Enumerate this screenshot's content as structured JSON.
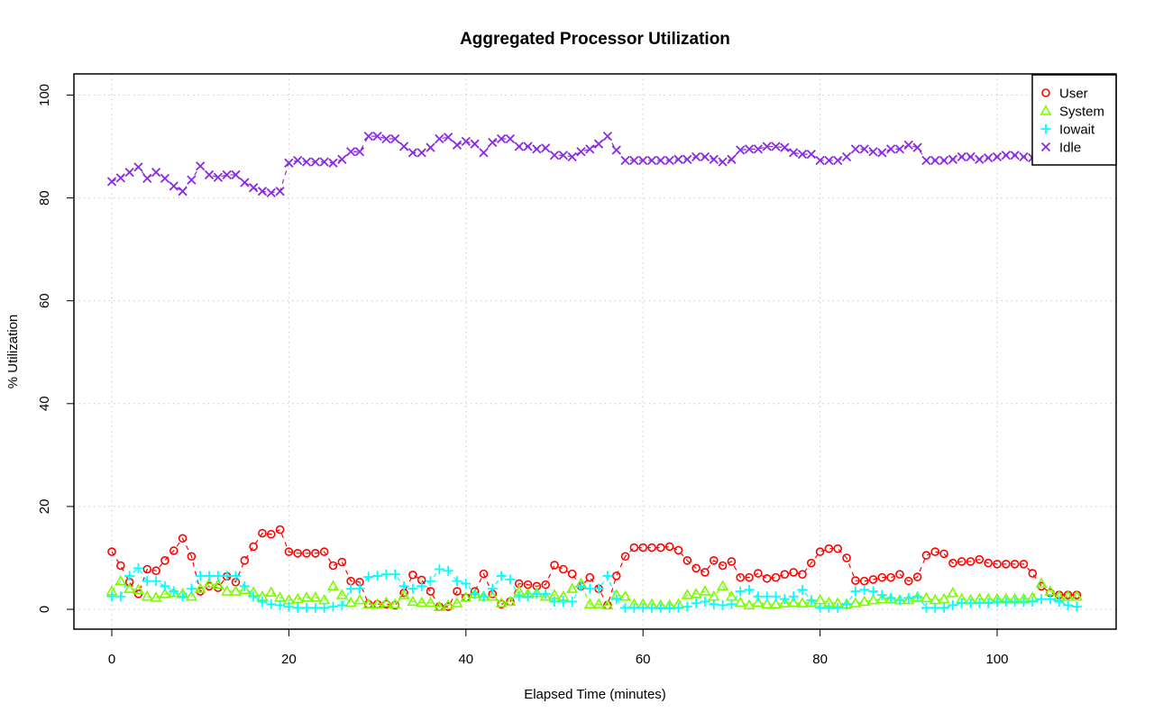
{
  "chart_data": {
    "type": "line",
    "title": "Aggregated Processor Utilization",
    "xlabel": "Elapsed Time (minutes)",
    "ylabel": "% Utilization",
    "xlim": [
      0,
      109
    ],
    "ylim": [
      0,
      100
    ],
    "xticks": [
      0,
      20,
      40,
      60,
      80,
      100
    ],
    "yticks": [
      0,
      20,
      40,
      60,
      80,
      100
    ],
    "grid": true,
    "legend_position": "top-right",
    "x": [
      0,
      1,
      2,
      3,
      4,
      5,
      6,
      7,
      8,
      9,
      10,
      11,
      12,
      13,
      14,
      15,
      16,
      17,
      18,
      19,
      20,
      21,
      22,
      23,
      24,
      25,
      26,
      27,
      28,
      29,
      30,
      31,
      32,
      33,
      34,
      35,
      36,
      37,
      38,
      39,
      40,
      41,
      42,
      43,
      44,
      45,
      46,
      47,
      48,
      49,
      50,
      51,
      52,
      53,
      54,
      55,
      56,
      57,
      58,
      59,
      60,
      61,
      62,
      63,
      64,
      65,
      66,
      67,
      68,
      69,
      70,
      71,
      72,
      73,
      74,
      75,
      76,
      77,
      78,
      79,
      80,
      81,
      82,
      83,
      84,
      85,
      86,
      87,
      88,
      89,
      90,
      91,
      92,
      93,
      94,
      95,
      96,
      97,
      98,
      99,
      100,
      101,
      102,
      103,
      104,
      105,
      106,
      107,
      108,
      109
    ],
    "series": [
      {
        "name": "User",
        "color": "#ff0000",
        "marker": "circle",
        "values": [
          11.2,
          8.5,
          5.3,
          3,
          7.8,
          7.5,
          9.5,
          11.4,
          13.8,
          10.3,
          3.5,
          4.5,
          4.2,
          6.4,
          5.3,
          9.5,
          12.2,
          14.8,
          14.6,
          15.5,
          11.2,
          10.9,
          10.9,
          10.9,
          11.2,
          8.5,
          9.2,
          5.5,
          5.3,
          1,
          1,
          1,
          0.8,
          3.2,
          6.7,
          5.7,
          3.5,
          0.5,
          0.5,
          3.5,
          2.3,
          3.5,
          6.9,
          3,
          1,
          1.5,
          5,
          4.8,
          4.5,
          4.8,
          8.6,
          7.8,
          6.9,
          4.5,
          6.2,
          4,
          0.8,
          6.5,
          10.3,
          12,
          12,
          12,
          12,
          12.2,
          11.5,
          9.5,
          8,
          7.2,
          9.5,
          8.5,
          9.3,
          6.2,
          6.2,
          7,
          6,
          6.2,
          6.8,
          7.2,
          6.8,
          9,
          11.2,
          11.8,
          11.8,
          10,
          5.6,
          5.5,
          5.8,
          6.2,
          6.2,
          6.8,
          5.5,
          6.3,
          10.5,
          11.2,
          10.8,
          9,
          9.3,
          9.3,
          9.7,
          9,
          8.8,
          8.8,
          8.8,
          8.8,
          7,
          4.5,
          3.2,
          2.8,
          2.8,
          2.8
        ]
      },
      {
        "name": "System",
        "color": "#7cfc00",
        "marker": "triangle",
        "values": [
          3.5,
          5.5,
          4,
          3.8,
          2.5,
          2.3,
          3,
          3.2,
          3,
          2.5,
          4,
          5,
          4.8,
          3.5,
          3.5,
          3.8,
          3.3,
          2.5,
          3.3,
          2.3,
          1.8,
          2,
          2.3,
          2.3,
          1.8,
          4.5,
          2.8,
          1.3,
          1.8,
          1,
          1,
          1.3,
          1,
          2.8,
          1.5,
          1.3,
          1.3,
          0.5,
          0.8,
          1.2,
          2.3,
          3,
          2.5,
          2.5,
          1.2,
          1.5,
          3.5,
          3,
          3.2,
          2.5,
          2.8,
          2.5,
          4,
          5,
          1,
          1,
          0.8,
          2.8,
          2.5,
          1,
          1,
          1,
          0.8,
          0.8,
          1,
          2.8,
          3,
          3.5,
          2.5,
          4.5,
          2.5,
          1.3,
          0.8,
          1.3,
          1,
          1,
          1.2,
          1.3,
          1.2,
          1.3,
          1.8,
          1.3,
          1.2,
          1,
          1.2,
          1.5,
          1.8,
          2,
          2,
          1.8,
          1.8,
          2.3,
          2.2,
          1.8,
          2,
          3.2,
          2,
          1.8,
          2,
          2,
          2,
          2,
          2,
          2,
          2.3,
          5,
          3.5,
          2.5,
          2.5,
          2.5
        ]
      },
      {
        "name": "Iowait",
        "color": "#00ffff",
        "marker": "plus",
        "values": [
          2.5,
          2.5,
          6.5,
          8,
          5.5,
          5.5,
          4.5,
          3.5,
          2.5,
          4,
          6.5,
          6.5,
          6.5,
          6.5,
          6.5,
          4.5,
          2.5,
          1.5,
          1,
          0.8,
          0.5,
          0.3,
          0.3,
          0.3,
          0.3,
          0.5,
          0.8,
          4,
          4,
          6.3,
          6.5,
          6.8,
          6.8,
          4.5,
          4,
          4.5,
          5.5,
          7.8,
          7.5,
          5.5,
          5,
          3,
          2.5,
          4,
          6.5,
          5.8,
          2.5,
          2.5,
          3,
          3,
          1.5,
          1.5,
          1.5,
          4.5,
          4,
          4,
          6.5,
          2,
          0.3,
          0.3,
          0.3,
          0.3,
          0.3,
          0.3,
          0.3,
          0.5,
          1.2,
          1.5,
          1,
          0.8,
          1,
          3.5,
          3.8,
          2.5,
          2.5,
          2.5,
          2,
          2.5,
          3.8,
          1.8,
          0.3,
          0.3,
          0.3,
          1,
          3.5,
          3.8,
          3.5,
          2.8,
          2.2,
          1.8,
          2.2,
          2.5,
          0.3,
          0.3,
          0.3,
          0.8,
          1.2,
          1.2,
          1.2,
          1.2,
          1.5,
          1.5,
          1.5,
          1.5,
          1.5,
          2,
          2,
          1.5,
          0.8,
          0.5
        ]
      },
      {
        "name": "Idle",
        "color": "#8a2be2",
        "marker": "x",
        "values": [
          83.2,
          83.9,
          85,
          86,
          83.8,
          85,
          83.8,
          82.3,
          81.3,
          83.5,
          86.2,
          84.5,
          84,
          84.5,
          84.5,
          83,
          82,
          81.3,
          81,
          81.3,
          86.8,
          87.3,
          87,
          87,
          87,
          86.8,
          87.5,
          89,
          89,
          92,
          92,
          91.5,
          91.5,
          90,
          88.8,
          88.8,
          89.8,
          91.5,
          91.8,
          90.3,
          91,
          90.5,
          88.8,
          90.8,
          91.5,
          91.5,
          90,
          90,
          89.5,
          89.7,
          88.3,
          88.3,
          88,
          89,
          89.5,
          90.5,
          92,
          89.3,
          87.3,
          87.3,
          87.3,
          87.3,
          87.3,
          87.3,
          87.5,
          87.5,
          88,
          88,
          87.5,
          87,
          87.5,
          89.3,
          89.5,
          89.5,
          90,
          90,
          89.8,
          88.8,
          88.5,
          88.5,
          87.3,
          87.3,
          87.3,
          88,
          89.5,
          89.5,
          89,
          88.8,
          89.5,
          89.5,
          90.3,
          89.8,
          87.3,
          87.3,
          87.3,
          87.5,
          88,
          88,
          87.5,
          87.8,
          88,
          88.3,
          88.3,
          88,
          87.8,
          88.8,
          92,
          94.5,
          94.5,
          94.5
        ]
      }
    ]
  }
}
